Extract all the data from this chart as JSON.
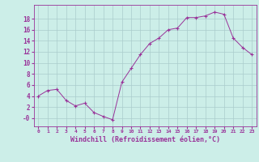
{
  "hours": [
    0,
    1,
    2,
    3,
    4,
    5,
    6,
    7,
    8,
    9,
    10,
    11,
    12,
    13,
    14,
    15,
    16,
    17,
    18,
    19,
    20,
    21,
    22,
    23
  ],
  "values": [
    4.0,
    5.0,
    5.2,
    3.2,
    2.2,
    2.7,
    1.0,
    0.3,
    -0.3,
    6.5,
    9.0,
    11.5,
    13.5,
    14.5,
    16.0,
    16.3,
    18.2,
    18.2,
    18.5,
    19.2,
    18.8,
    14.5,
    12.8,
    11.5
  ],
  "line_color": "#993399",
  "marker_color": "#993399",
  "bg_color": "#cceee8",
  "grid_color": "#aacccc",
  "xlabel": "Windchill (Refroidissement éolien,°C)",
  "xlabel_color": "#993399",
  "tick_color": "#993399",
  "ylim": [
    -1.5,
    20.5
  ],
  "yticks": [
    0,
    2,
    4,
    6,
    8,
    10,
    12,
    14,
    16,
    18
  ],
  "ytick_labels": [
    "-0",
    "2",
    "4",
    "6",
    "8",
    "10",
    "12",
    "14",
    "16",
    "18"
  ],
  "xlim": [
    -0.5,
    23.5
  ],
  "xticks": [
    0,
    1,
    2,
    3,
    4,
    5,
    6,
    7,
    8,
    9,
    10,
    11,
    12,
    13,
    14,
    15,
    16,
    17,
    18,
    19,
    20,
    21,
    22,
    23
  ]
}
